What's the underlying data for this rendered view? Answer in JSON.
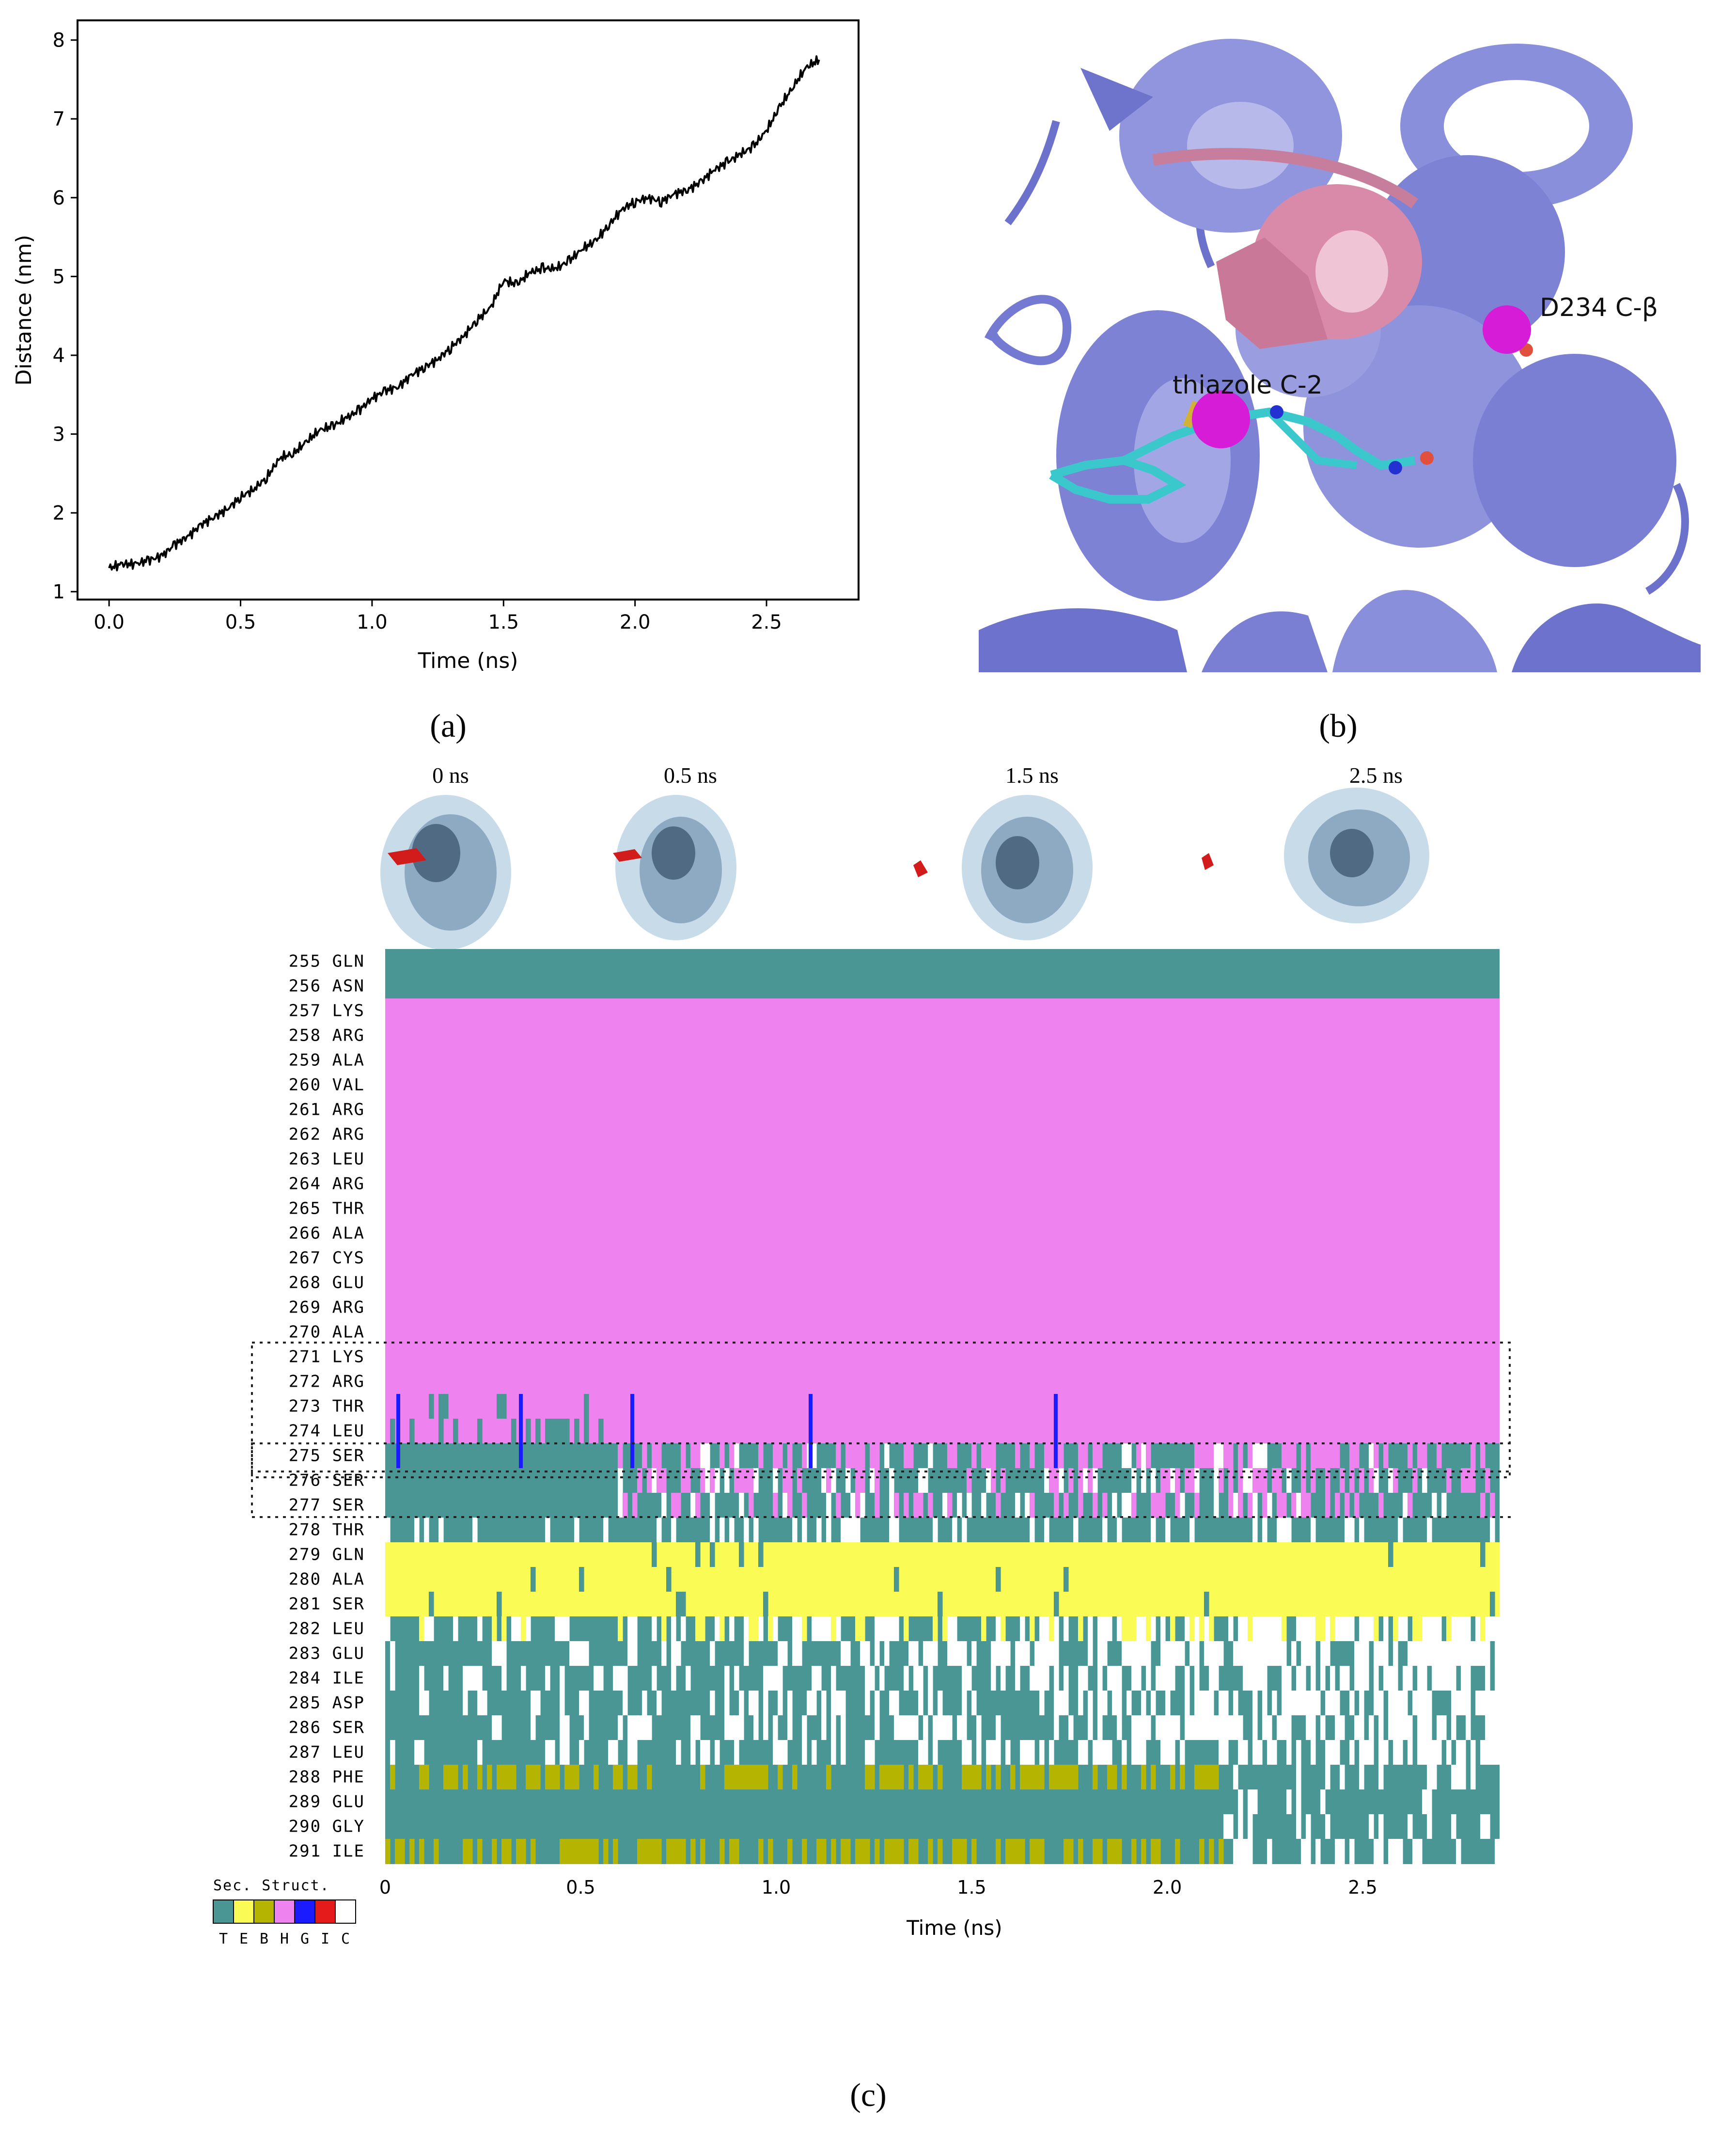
{
  "panels": {
    "a_label": "(a)",
    "b_label": "(b)",
    "c_label": "(c)"
  },
  "chart_data": [
    {
      "panel": "a",
      "type": "line",
      "xlabel": "Time (ns)",
      "ylabel": "Distance (nm)",
      "xlim": [
        -0.12,
        2.85
      ],
      "ylim": [
        0.9,
        8.25
      ],
      "xticks": [
        "0.0",
        "0.5",
        "1.0",
        "1.5",
        "2.0",
        "2.5"
      ],
      "yticks": [
        "1",
        "2",
        "3",
        "4",
        "5",
        "6",
        "7",
        "8"
      ],
      "series": [
        {
          "color": "#000000",
          "x": [
            0.0,
            0.05,
            0.1,
            0.15,
            0.2,
            0.25,
            0.3,
            0.35,
            0.4,
            0.45,
            0.5,
            0.55,
            0.6,
            0.65,
            0.7,
            0.75,
            0.8,
            0.85,
            0.9,
            0.95,
            1.0,
            1.05,
            1.1,
            1.15,
            1.2,
            1.25,
            1.3,
            1.35,
            1.4,
            1.45,
            1.5,
            1.55,
            1.6,
            1.65,
            1.7,
            1.75,
            1.8,
            1.85,
            1.9,
            1.95,
            2.0,
            2.05,
            2.1,
            2.15,
            2.2,
            2.25,
            2.3,
            2.35,
            2.4,
            2.45,
            2.5,
            2.55,
            2.6,
            2.65,
            2.7
          ],
          "y": [
            1.3,
            1.35,
            1.35,
            1.4,
            1.45,
            1.6,
            1.7,
            1.85,
            1.95,
            2.05,
            2.2,
            2.3,
            2.45,
            2.7,
            2.75,
            2.9,
            3.05,
            3.1,
            3.2,
            3.3,
            3.45,
            3.55,
            3.6,
            3.75,
            3.85,
            3.95,
            4.1,
            4.25,
            4.45,
            4.6,
            4.95,
            4.9,
            5.05,
            5.1,
            5.1,
            5.2,
            5.35,
            5.45,
            5.65,
            5.85,
            5.95,
            6.0,
            5.95,
            6.05,
            6.1,
            6.2,
            6.35,
            6.45,
            6.55,
            6.65,
            6.85,
            7.15,
            7.4,
            7.65,
            7.75
          ]
        }
      ]
    },
    {
      "panel": "b",
      "type": "other",
      "annotations": [
        "thiazole C-2",
        "D234 C-β"
      ],
      "colors": {
        "protein": "#7b80d6",
        "helix_highlight": "#d98aa8",
        "ligand": "#3ac8cc",
        "atom_marker": "#d61cd6"
      }
    },
    {
      "panel": "c",
      "type": "heatmap",
      "xlabel": "Time (ns)",
      "xticks": [
        "0",
        "0.5",
        "1.0",
        "1.5",
        "2.0",
        "2.5"
      ],
      "xlim": [
        0,
        2.85
      ],
      "snapshot_labels": [
        "0 ns",
        "0.5 ns",
        "1.5 ns",
        "2.5 ns"
      ],
      "residues": [
        "255 GLN",
        "256 ASN",
        "257 LYS",
        "258 ARG",
        "259 ALA",
        "260 VAL",
        "261 ARG",
        "262 ARG",
        "263 LEU",
        "264 ARG",
        "265 THR",
        "266 ALA",
        "267 CYS",
        "268 GLU",
        "269 ARG",
        "270 ALA",
        "271 LYS",
        "272 ARG",
        "273 THR",
        "274 LEU",
        "275 SER",
        "276 SER",
        "277 SER",
        "278 THR",
        "279 GLN",
        "280 ALA",
        "281 SER",
        "282 LEU",
        "283 GLU",
        "284 ILE",
        "285 ASP",
        "286 SER",
        "287 LEU",
        "288 PHE",
        "289 GLU",
        "290 GLY",
        "291 ILE"
      ],
      "legend": {
        "title": "Sec. Struct.",
        "codes": [
          "T",
          "E",
          "B",
          "H",
          "G",
          "I",
          "C"
        ],
        "colors": [
          "#4a9694",
          "#fbfb55",
          "#b5b400",
          "#ee82ee",
          "#1b1bff",
          "#e51b1b",
          "#ffffff"
        ]
      },
      "dominant_structure": [
        "T",
        "T",
        "H",
        "H",
        "H",
        "H",
        "H",
        "H",
        "H",
        "H",
        "H",
        "H",
        "H",
        "H",
        "H",
        "H",
        "H",
        "H",
        "H",
        "H",
        "T",
        "T",
        "T",
        "T",
        "E",
        "E",
        "E",
        "T",
        "T",
        "T",
        "T",
        "T",
        "T",
        "T",
        "T",
        "T",
        "T"
      ]
    }
  ]
}
